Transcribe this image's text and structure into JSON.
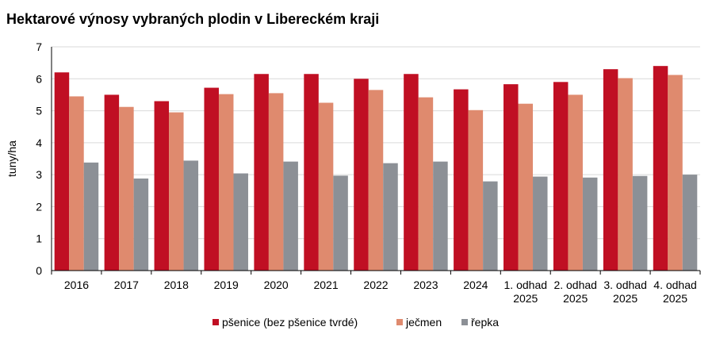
{
  "chart_data": {
    "type": "bar",
    "title": "Hektarové výnosy vybraných plodin v Libereckém kraji",
    "ylabel": "tuny/ha",
    "xlabel": "",
    "ylim": [
      0,
      7
    ],
    "yticks": [
      0,
      1,
      2,
      3,
      4,
      5,
      6,
      7
    ],
    "grid": true,
    "legend_position": "bottom",
    "categories": [
      [
        "2016"
      ],
      [
        "2017"
      ],
      [
        "2018"
      ],
      [
        "2019"
      ],
      [
        "2020"
      ],
      [
        "2021"
      ],
      [
        "2022"
      ],
      [
        "2023"
      ],
      [
        "2024"
      ],
      [
        "1. odhad",
        "2025"
      ],
      [
        "2. odhad",
        "2025"
      ],
      [
        "3. odhad",
        "2025"
      ],
      [
        "4. odhad",
        "2025"
      ]
    ],
    "series": [
      {
        "name": "pšenice (bez pšenice tvrdé)",
        "color": "#C00F23",
        "values": [
          6.2,
          5.5,
          5.3,
          5.72,
          6.15,
          6.15,
          6.0,
          6.15,
          5.67,
          5.83,
          5.9,
          6.3,
          6.4
        ]
      },
      {
        "name": "ječmen",
        "color": "#DF8A6E",
        "values": [
          5.45,
          5.12,
          4.95,
          5.52,
          5.55,
          5.25,
          5.65,
          5.42,
          5.02,
          5.22,
          5.5,
          6.02,
          6.12
        ]
      },
      {
        "name": "řepka",
        "color": "#8C9096",
        "values": [
          3.38,
          2.88,
          3.44,
          3.04,
          3.41,
          2.97,
          3.36,
          3.41,
          2.79,
          2.94,
          2.91,
          2.96,
          3.0
        ]
      }
    ]
  }
}
